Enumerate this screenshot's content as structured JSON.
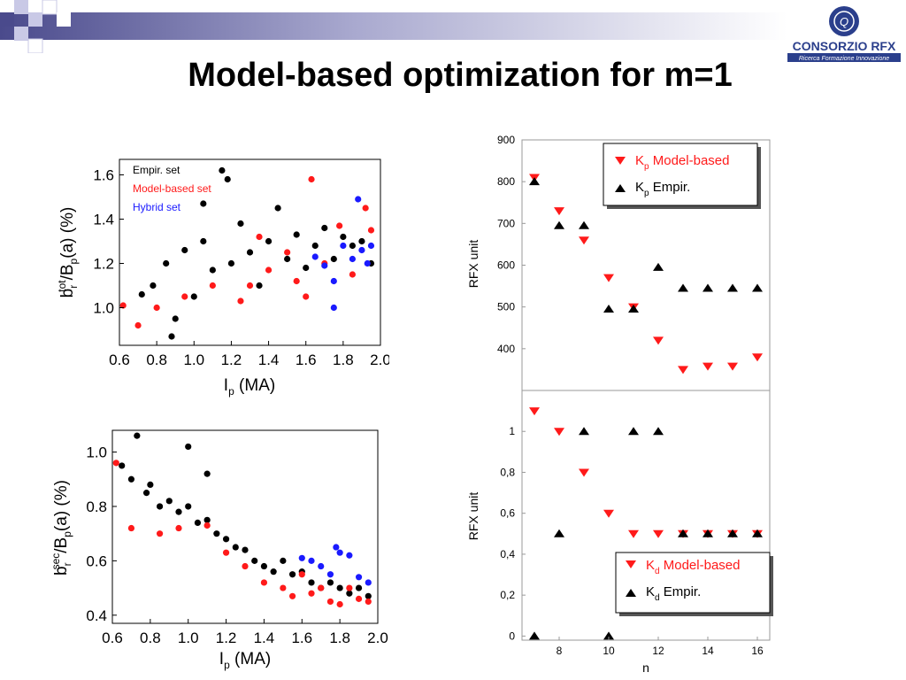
{
  "slide": {
    "title": "Model-based optimization for m=1",
    "logo_text": "CONSORZIO RFX",
    "logo_tagline": "Ricerca Formazione Innovazione"
  },
  "colors": {
    "empir": "#000000",
    "model": "#ff1a1a",
    "hybrid": "#1a1aff",
    "header_dark": "#4a4a8c"
  },
  "chart_data": [
    {
      "type": "scatter",
      "xlabel_base": "I",
      "xlabel_sub": "p",
      "xlabel_tail": " (MA)",
      "ylabel": {
        "b": "b",
        "sub": "r",
        "sup": "tot",
        "mid": "/B",
        "psub": "p",
        "tail": "(a) (%)"
      },
      "xlim": [
        0.6,
        2.0
      ],
      "ylim": [
        0.83,
        1.67
      ],
      "xticks": [
        "0.6",
        "0.8",
        "1.0",
        "1.2",
        "1.4",
        "1.6",
        "1.8",
        "2.0"
      ],
      "yticks": [
        "1.0",
        "1.2",
        "1.4",
        "1.6"
      ],
      "legend": [
        "Empir. set",
        "Model-based set",
        "Hybrid set"
      ],
      "legend_position": "top-left",
      "series": [
        {
          "name": "Empir. set",
          "points": [
            [
              0.72,
              1.06
            ],
            [
              0.78,
              1.1
            ],
            [
              0.85,
              1.2
            ],
            [
              0.9,
              0.95
            ],
            [
              0.95,
              1.26
            ],
            [
              1.0,
              1.05
            ],
            [
              1.05,
              1.3
            ],
            [
              1.1,
              1.17
            ],
            [
              1.15,
              1.62
            ],
            [
              1.2,
              1.2
            ],
            [
              1.25,
              1.38
            ],
            [
              1.3,
              1.25
            ],
            [
              1.35,
              1.1
            ],
            [
              1.4,
              1.3
            ],
            [
              1.45,
              1.45
            ],
            [
              1.5,
              1.22
            ],
            [
              1.55,
              1.33
            ],
            [
              1.6,
              1.18
            ],
            [
              1.65,
              1.28
            ],
            [
              1.7,
              1.36
            ],
            [
              1.75,
              1.22
            ],
            [
              1.8,
              1.32
            ],
            [
              1.85,
              1.28
            ],
            [
              1.9,
              1.3
            ],
            [
              1.95,
              1.2
            ],
            [
              0.88,
              0.87
            ],
            [
              1.05,
              1.47
            ],
            [
              1.18,
              1.58
            ]
          ]
        },
        {
          "name": "Model-based set",
          "points": [
            [
              0.62,
              1.01
            ],
            [
              0.7,
              0.92
            ],
            [
              0.8,
              1.0
            ],
            [
              0.95,
              1.05
            ],
            [
              1.1,
              1.1
            ],
            [
              1.25,
              1.03
            ],
            [
              1.3,
              1.1
            ],
            [
              1.35,
              1.32
            ],
            [
              1.4,
              1.17
            ],
            [
              1.5,
              1.25
            ],
            [
              1.55,
              1.12
            ],
            [
              1.6,
              1.05
            ],
            [
              1.63,
              1.58
            ],
            [
              1.7,
              1.2
            ],
            [
              1.78,
              1.37
            ],
            [
              1.85,
              1.15
            ],
            [
              1.92,
              1.45
            ],
            [
              1.95,
              1.35
            ]
          ]
        },
        {
          "name": "Hybrid set",
          "points": [
            [
              1.65,
              1.23
            ],
            [
              1.7,
              1.19
            ],
            [
              1.75,
              1.12
            ],
            [
              1.8,
              1.28
            ],
            [
              1.85,
              1.22
            ],
            [
              1.88,
              1.49
            ],
            [
              1.9,
              1.26
            ],
            [
              1.93,
              1.2
            ],
            [
              1.95,
              1.28
            ],
            [
              1.75,
              1.0
            ]
          ]
        }
      ]
    },
    {
      "type": "scatter",
      "xlabel_base": "I",
      "xlabel_sub": "p",
      "xlabel_tail": " (MA)",
      "ylabel": {
        "b": "b",
        "sub": "r",
        "sup": "sec",
        "mid": "/B",
        "psub": "p",
        "tail": "(a) (%)"
      },
      "xlim": [
        0.6,
        2.0
      ],
      "ylim": [
        0.37,
        1.08
      ],
      "xticks": [
        "0.6",
        "0.8",
        "1.0",
        "1.2",
        "1.4",
        "1.6",
        "1.8",
        "2.0"
      ],
      "yticks": [
        "0.4",
        "0.6",
        "0.8",
        "1.0"
      ],
      "series": [
        {
          "name": "Empir. set",
          "points": [
            [
              0.65,
              0.95
            ],
            [
              0.7,
              0.9
            ],
            [
              0.73,
              1.06
            ],
            [
              0.78,
              0.85
            ],
            [
              0.85,
              0.8
            ],
            [
              0.9,
              0.82
            ],
            [
              0.95,
              0.78
            ],
            [
              1.0,
              1.02
            ],
            [
              1.05,
              0.74
            ],
            [
              1.1,
              0.92
            ],
            [
              1.15,
              0.7
            ],
            [
              1.2,
              0.68
            ],
            [
              1.25,
              0.65
            ],
            [
              1.3,
              0.64
            ],
            [
              1.35,
              0.6
            ],
            [
              1.4,
              0.58
            ],
            [
              1.45,
              0.56
            ],
            [
              1.5,
              0.6
            ],
            [
              1.55,
              0.55
            ],
            [
              1.6,
              0.56
            ],
            [
              1.65,
              0.52
            ],
            [
              1.7,
              0.5
            ],
            [
              1.75,
              0.52
            ],
            [
              1.8,
              0.5
            ],
            [
              1.85,
              0.48
            ],
            [
              1.9,
              0.5
            ],
            [
              1.95,
              0.47
            ],
            [
              0.8,
              0.88
            ],
            [
              1.0,
              0.8
            ],
            [
              1.1,
              0.75
            ]
          ]
        },
        {
          "name": "Model-based set",
          "points": [
            [
              0.62,
              0.96
            ],
            [
              0.7,
              0.72
            ],
            [
              0.85,
              0.7
            ],
            [
              0.95,
              0.72
            ],
            [
              1.1,
              0.73
            ],
            [
              1.2,
              0.63
            ],
            [
              1.3,
              0.58
            ],
            [
              1.4,
              0.52
            ],
            [
              1.5,
              0.5
            ],
            [
              1.55,
              0.47
            ],
            [
              1.6,
              0.55
            ],
            [
              1.65,
              0.48
            ],
            [
              1.7,
              0.5
            ],
            [
              1.75,
              0.45
            ],
            [
              1.8,
              0.44
            ],
            [
              1.85,
              0.5
            ],
            [
              1.9,
              0.46
            ],
            [
              1.95,
              0.45
            ]
          ]
        },
        {
          "name": "Hybrid set",
          "points": [
            [
              1.6,
              0.61
            ],
            [
              1.65,
              0.6
            ],
            [
              1.7,
              0.58
            ],
            [
              1.75,
              0.55
            ],
            [
              1.8,
              0.63
            ],
            [
              1.85,
              0.62
            ],
            [
              1.9,
              0.54
            ],
            [
              1.78,
              0.65
            ],
            [
              1.95,
              0.52
            ]
          ]
        }
      ]
    },
    {
      "type": "scatter",
      "ylabel": "RFX unit",
      "xlim": [
        6.5,
        16.5
      ],
      "ylim": [
        300,
        900
      ],
      "yticks": [
        "400",
        "500",
        "600",
        "700",
        "800",
        "900"
      ],
      "legend_position": "top-right",
      "legend": [
        {
          "base": "K",
          "sub": "p",
          "text": " Model-based"
        },
        {
          "base": "K",
          "sub": "p",
          "text": " Empir."
        }
      ],
      "series": [
        {
          "name": "K_p Model-based",
          "marker": "triangle-down",
          "x": [
            7,
            8,
            9,
            10,
            11,
            12,
            13,
            14,
            15,
            16
          ],
          "y": [
            810,
            730,
            660,
            570,
            500,
            420,
            350,
            358,
            358,
            380
          ]
        },
        {
          "name": "K_p Empir.",
          "marker": "triangle-up",
          "x": [
            7,
            8,
            9,
            10,
            11,
            12,
            13,
            14,
            15,
            16
          ],
          "y": [
            800,
            695,
            695,
            495,
            495,
            595,
            545,
            545,
            545,
            545
          ]
        }
      ]
    },
    {
      "type": "scatter",
      "ylabel": "RFX unit",
      "xlabel": "n",
      "xlim": [
        6.5,
        16.5
      ],
      "ylim": [
        -0.02,
        1.2
      ],
      "xticks": [
        "8",
        "10",
        "12",
        "14",
        "16"
      ],
      "yticks": [
        "0",
        "0,2",
        "0,4",
        "0,6",
        "0,8",
        "1"
      ],
      "legend_position": "bottom-right",
      "legend": [
        {
          "base": "K",
          "sub": "d",
          "text": " Model-based"
        },
        {
          "base": "K",
          "sub": "d",
          "text": " Empir."
        }
      ],
      "series": [
        {
          "name": "K_d Model-based",
          "marker": "triangle-down",
          "x": [
            7,
            8,
            9,
            10,
            11,
            12,
            13,
            14,
            15,
            16
          ],
          "y": [
            1.1,
            1.0,
            0.8,
            0.6,
            0.5,
            0.5,
            0.5,
            0.5,
            0.5,
            0.5
          ]
        },
        {
          "name": "K_d Empir.",
          "marker": "triangle-up",
          "x": [
            7,
            8,
            9,
            10,
            11,
            12,
            13,
            14,
            15,
            16
          ],
          "y": [
            0,
            0.5,
            1.0,
            0,
            1.0,
            1.0,
            0.5,
            0.5,
            0.5,
            0.5
          ]
        }
      ]
    }
  ]
}
